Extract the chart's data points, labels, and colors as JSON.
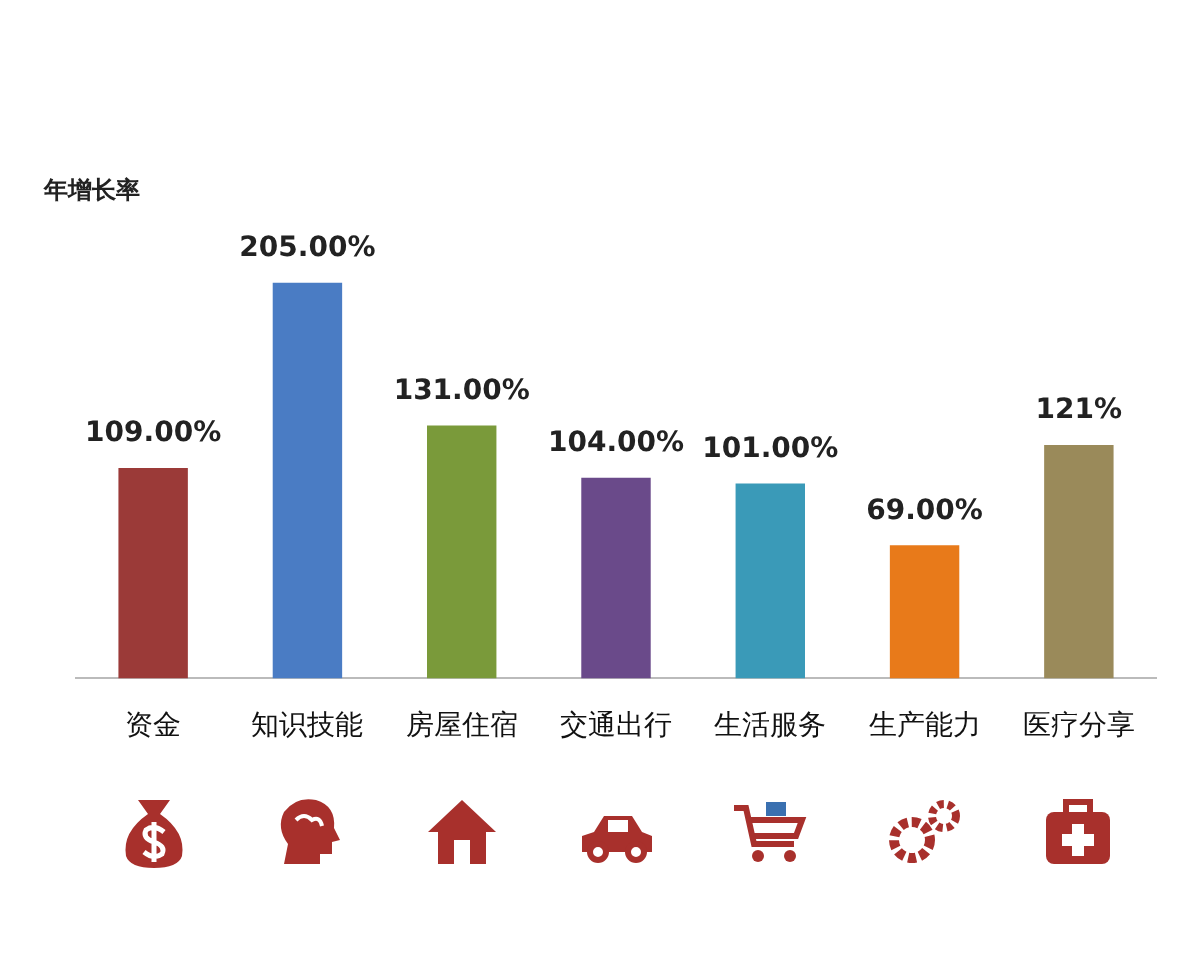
{
  "chart_data": {
    "type": "bar",
    "ylabel": "年增长率",
    "categories": [
      "资金",
      "知识技能",
      "房屋住宿",
      "交通出行",
      "生活服务",
      "生产能力",
      "医疗分享"
    ],
    "values": [
      109,
      205,
      131,
      104,
      101,
      69,
      121
    ],
    "value_labels": [
      "109.00%",
      "205.00%",
      "131.00%",
      "104.00%",
      "101.00%",
      "69.00%",
      "121%"
    ],
    "colors": [
      "#9b3a38",
      "#4a7cc4",
      "#7a9a3a",
      "#6a4a8a",
      "#3a9ab8",
      "#e87a1a",
      "#9a8a5a"
    ],
    "grid": false,
    "legend": false
  }
}
